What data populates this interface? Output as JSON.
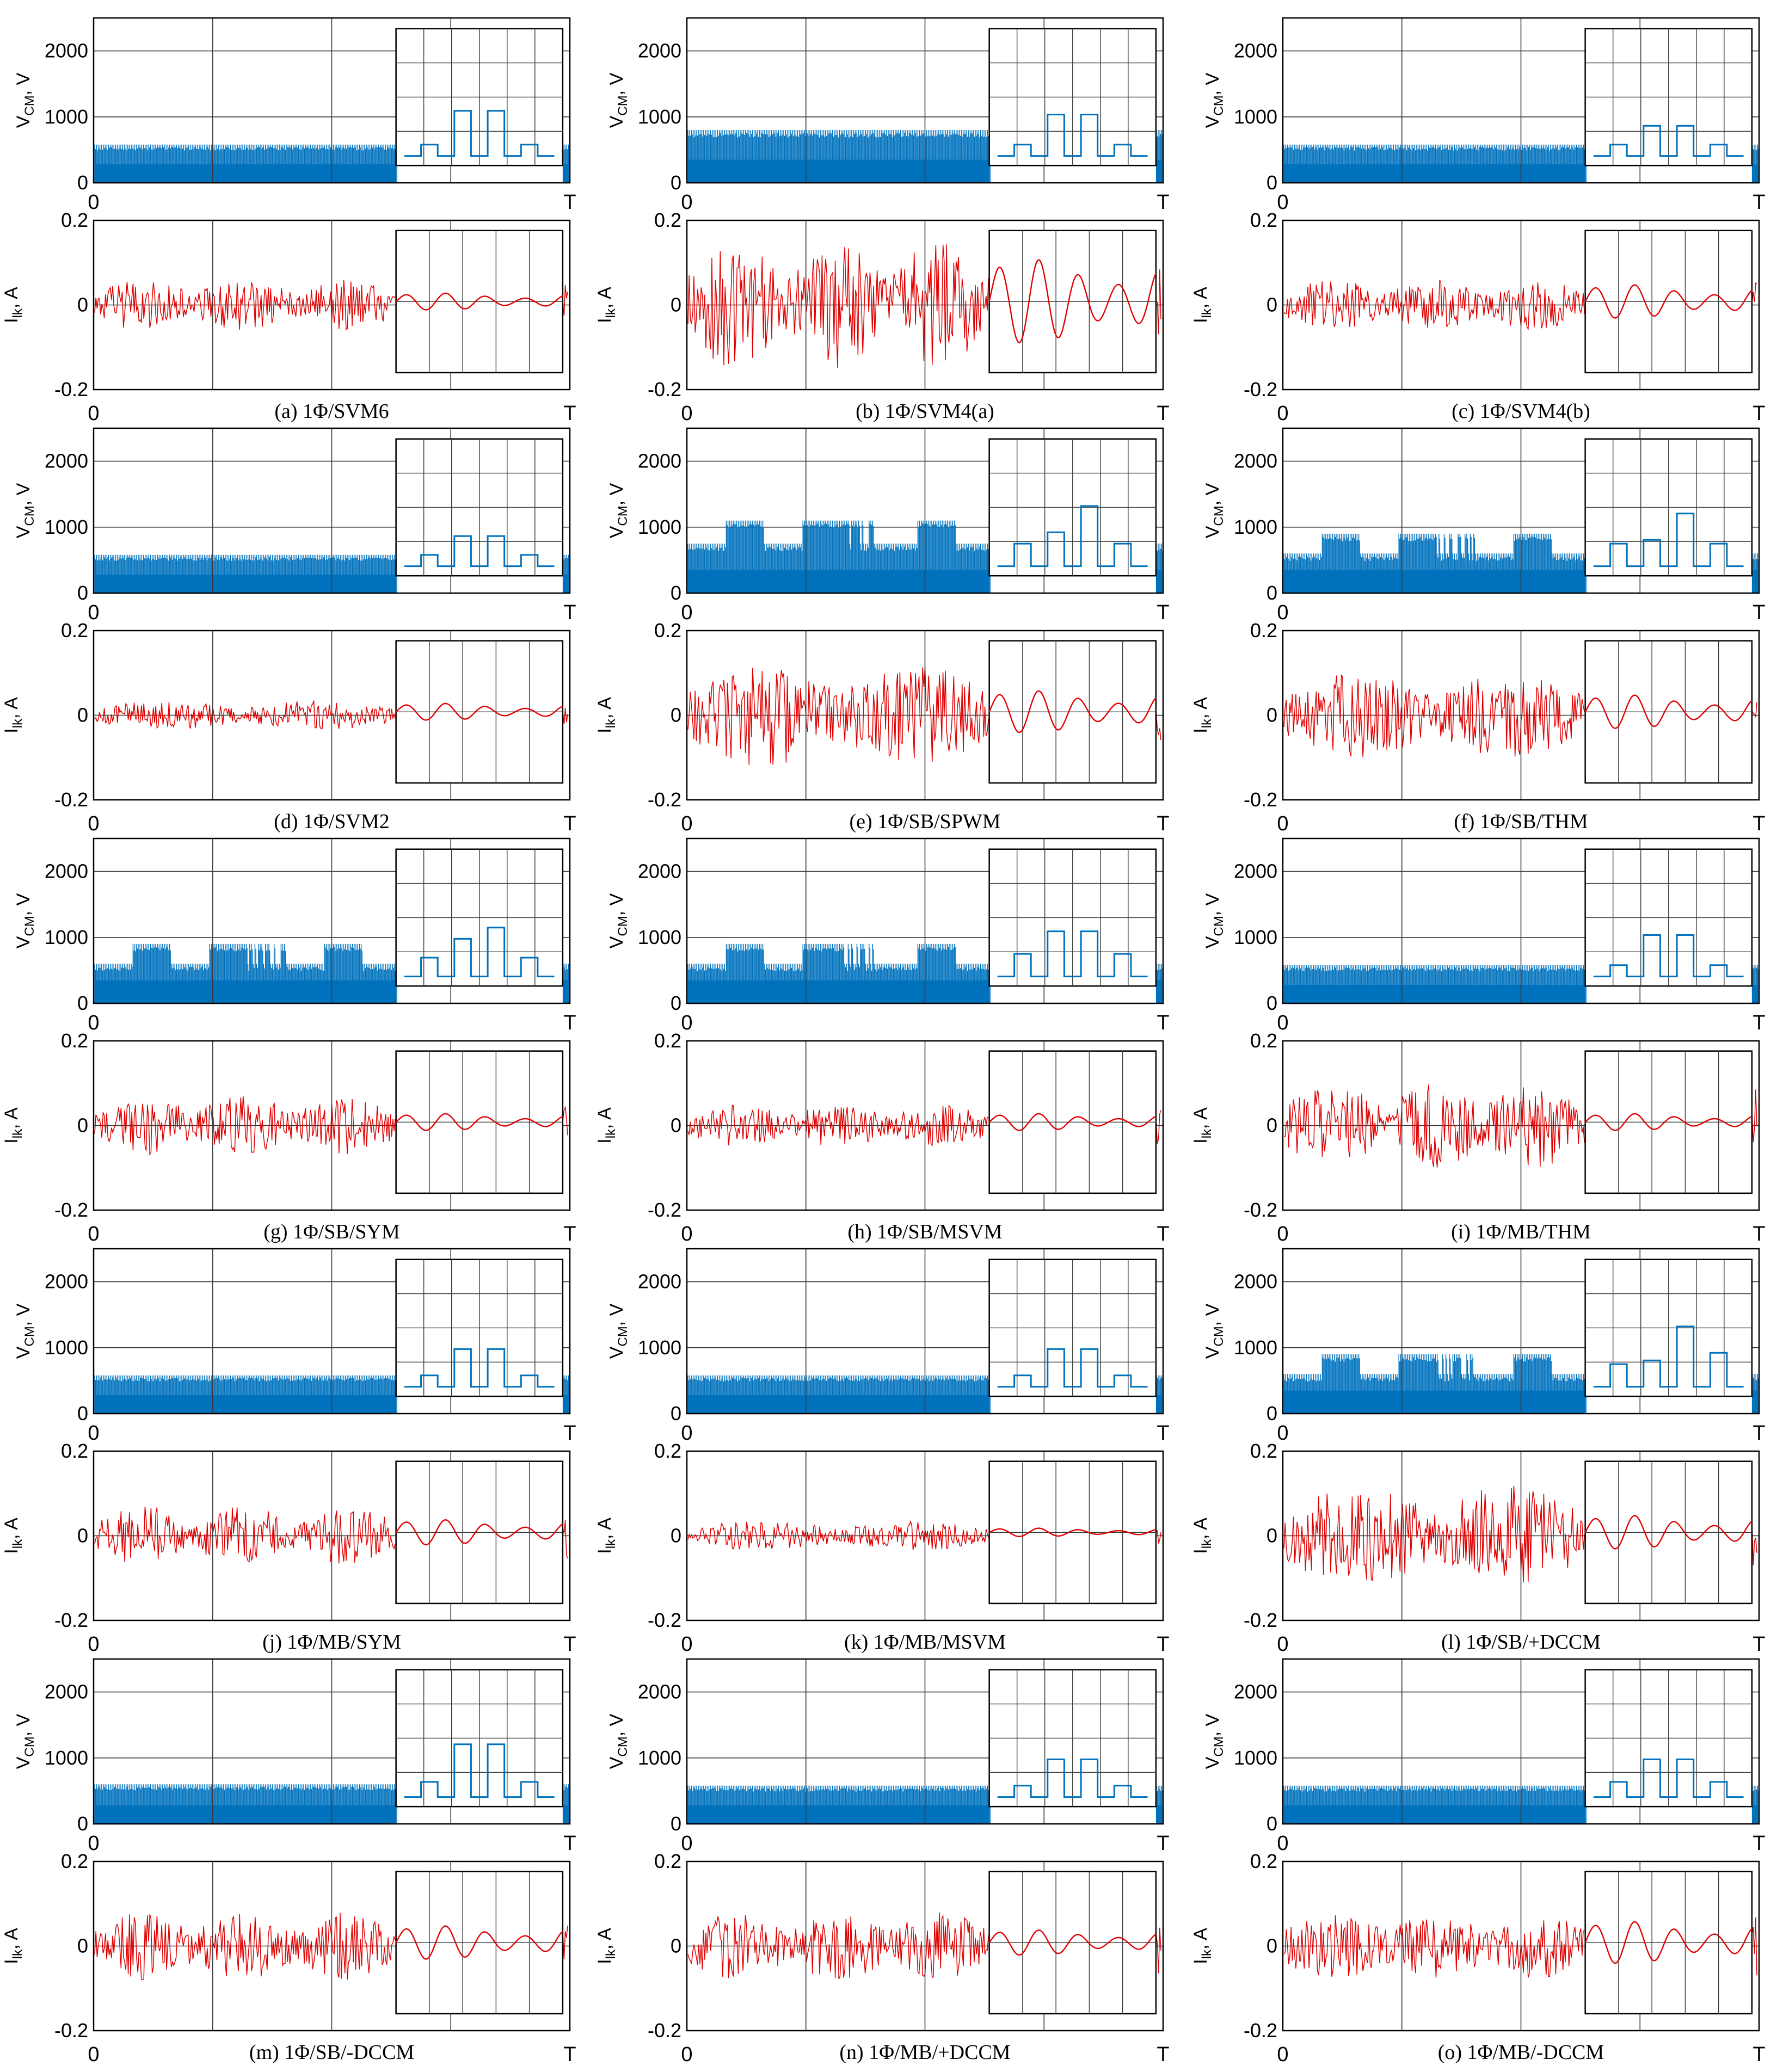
{
  "figure": {
    "vcm_ylabel": "VCM, V",
    "ilk_ylabel": "Ilk, A",
    "vcm_ticks": [
      "0",
      "1000",
      "2000"
    ],
    "ilk_ticks": [
      "-0.2",
      "0",
      "0.2"
    ],
    "x_start_label": "0",
    "x_end_label": "T",
    "colors": {
      "vcm": "#0072BD",
      "ilk": "#E00000",
      "axis": "#000000",
      "grid": "#3a3a3a"
    }
  },
  "chart_data": [
    {
      "id": "a",
      "caption": "(a) 1Φ/SVM6",
      "type": "line",
      "xlim": [
        "0",
        "T"
      ],
      "vcm": {
        "ylim": [
          0,
          2500
        ],
        "base": 200,
        "peaks": [
          580
        ],
        "inset_levels": [
          0,
          150,
          0,
          600,
          0,
          600,
          0,
          150,
          0
        ]
      },
      "ilk": {
        "ylim": [
          -0.2,
          0.2
        ],
        "amplitude": 0.06,
        "envelope_cycles": 3,
        "inset_amplitude": 0.02
      }
    },
    {
      "id": "b",
      "caption": "(b) 1Φ/SVM4(a)",
      "type": "line",
      "xlim": [
        "0",
        "T"
      ],
      "vcm": {
        "ylim": [
          0,
          2500
        ],
        "base": 250,
        "peaks": [
          800
        ],
        "inset_levels": [
          0,
          150,
          0,
          550,
          0,
          550,
          0,
          150,
          0
        ]
      },
      "ilk": {
        "ylim": [
          -0.2,
          0.2
        ],
        "amplitude": 0.15,
        "envelope_cycles": 3,
        "inset_amplitude": 0.1
      }
    },
    {
      "id": "c",
      "caption": "(c) 1Φ/SVM4(b)",
      "type": "line",
      "xlim": [
        "0",
        "T"
      ],
      "vcm": {
        "ylim": [
          0,
          2500
        ],
        "base": 200,
        "peaks": [
          580
        ],
        "inset_levels": [
          0,
          150,
          0,
          400,
          0,
          400,
          0,
          150,
          0
        ]
      },
      "ilk": {
        "ylim": [
          -0.2,
          0.2
        ],
        "amplitude": 0.06,
        "envelope_cycles": 3,
        "inset_amplitude": 0.04
      }
    },
    {
      "id": "d",
      "caption": "(d) 1Φ/SVM2",
      "type": "line",
      "xlim": [
        "0",
        "T"
      ],
      "vcm": {
        "ylim": [
          0,
          2500
        ],
        "base": 200,
        "peaks": [
          580
        ],
        "inset_levels": [
          0,
          150,
          0,
          400,
          0,
          400,
          0,
          150,
          0
        ]
      },
      "ilk": {
        "ylim": [
          -0.2,
          0.2
        ],
        "amplitude": 0.035,
        "envelope_cycles": 2,
        "inset_amplitude": 0.02
      }
    },
    {
      "id": "e",
      "caption": "(e) 1Φ/SB/SPWM",
      "type": "line",
      "xlim": [
        "0",
        "T"
      ],
      "vcm": {
        "ylim": [
          0,
          2500
        ],
        "base": 250,
        "peaks": [
          750,
          1100
        ],
        "inset_levels": [
          0,
          300,
          0,
          450,
          0,
          800,
          0,
          300,
          0
        ]
      },
      "ilk": {
        "ylim": [
          -0.2,
          0.2
        ],
        "amplitude": 0.12,
        "envelope_cycles": 2,
        "inset_amplitude": 0.05
      }
    },
    {
      "id": "f",
      "caption": "(f) 1Φ/SB/THM",
      "type": "line",
      "xlim": [
        "0",
        "T"
      ],
      "vcm": {
        "ylim": [
          0,
          2500
        ],
        "base": 250,
        "peaks": [
          600,
          900
        ],
        "inset_levels": [
          0,
          300,
          0,
          350,
          0,
          700,
          0,
          300,
          0
        ]
      },
      "ilk": {
        "ylim": [
          -0.2,
          0.2
        ],
        "amplitude": 0.1,
        "envelope_cycles": 2,
        "inset_amplitude": 0.04
      }
    },
    {
      "id": "g",
      "caption": "(g) 1Φ/SB/SYM",
      "type": "line",
      "xlim": [
        "0",
        "T"
      ],
      "vcm": {
        "ylim": [
          0,
          2500
        ],
        "base": 250,
        "peaks": [
          600,
          900
        ],
        "inset_levels": [
          0,
          250,
          0,
          500,
          0,
          650,
          0,
          250,
          0
        ]
      },
      "ilk": {
        "ylim": [
          -0.2,
          0.2
        ],
        "amplitude": 0.07,
        "envelope_cycles": 3,
        "inset_amplitude": 0.02
      }
    },
    {
      "id": "h",
      "caption": "(h) 1Φ/SB/MSVM",
      "type": "line",
      "xlim": [
        "0",
        "T"
      ],
      "vcm": {
        "ylim": [
          0,
          2500
        ],
        "base": 250,
        "peaks": [
          600,
          900
        ],
        "inset_levels": [
          0,
          300,
          0,
          600,
          0,
          600,
          0,
          300,
          0
        ]
      },
      "ilk": {
        "ylim": [
          -0.2,
          0.2
        ],
        "amplitude": 0.05,
        "envelope_cycles": 3,
        "inset_amplitude": 0.02
      }
    },
    {
      "id": "i",
      "caption": "(i) 1Φ/MB/THM",
      "type": "line",
      "xlim": [
        "0",
        "T"
      ],
      "vcm": {
        "ylim": [
          0,
          2500
        ],
        "base": 200,
        "peaks": [
          580
        ],
        "inset_levels": [
          0,
          150,
          0,
          550,
          0,
          550,
          0,
          150,
          0
        ]
      },
      "ilk": {
        "ylim": [
          -0.2,
          0.2
        ],
        "amplitude": 0.1,
        "envelope_cycles": 3,
        "inset_amplitude": 0.02
      }
    },
    {
      "id": "j",
      "caption": "(j) 1Φ/MB/SYM",
      "type": "line",
      "xlim": [
        "0",
        "T"
      ],
      "vcm": {
        "ylim": [
          0,
          2500
        ],
        "base": 200,
        "peaks": [
          580
        ],
        "inset_levels": [
          0,
          150,
          0,
          500,
          0,
          500,
          0,
          150,
          0
        ]
      },
      "ilk": {
        "ylim": [
          -0.2,
          0.2
        ],
        "amplitude": 0.07,
        "envelope_cycles": 3,
        "inset_amplitude": 0.03
      }
    },
    {
      "id": "k",
      "caption": "(k) 1Φ/MB/MSVM",
      "type": "line",
      "xlim": [
        "0",
        "T"
      ],
      "vcm": {
        "ylim": [
          0,
          2500
        ],
        "base": 200,
        "peaks": [
          580
        ],
        "inset_levels": [
          0,
          150,
          0,
          500,
          0,
          500,
          0,
          150,
          0
        ]
      },
      "ilk": {
        "ylim": [
          -0.2,
          0.2
        ],
        "amplitude": 0.035,
        "envelope_cycles": 2,
        "inset_amplitude": 0.01
      }
    },
    {
      "id": "l",
      "caption": "(l) 1Φ/SB/+DCCM",
      "type": "line",
      "xlim": [
        "0",
        "T"
      ],
      "vcm": {
        "ylim": [
          0,
          2500
        ],
        "base": 250,
        "peaks": [
          600,
          900
        ],
        "inset_levels": [
          0,
          300,
          0,
          350,
          0,
          800,
          0,
          450,
          0
        ]
      },
      "ilk": {
        "ylim": [
          -0.2,
          0.2
        ],
        "amplitude": 0.12,
        "envelope_cycles": 2,
        "inset_amplitude": 0.04
      }
    },
    {
      "id": "m",
      "caption": "(m) 1Φ/SB/-DCCM",
      "type": "line",
      "xlim": [
        "0",
        "T"
      ],
      "vcm": {
        "ylim": [
          0,
          2500
        ],
        "base": 200,
        "peaks": [
          600
        ],
        "inset_levels": [
          0,
          200,
          0,
          700,
          0,
          700,
          0,
          200,
          0
        ]
      },
      "ilk": {
        "ylim": [
          -0.2,
          0.2
        ],
        "amplitude": 0.08,
        "envelope_cycles": 3,
        "inset_amplitude": 0.04
      }
    },
    {
      "id": "n",
      "caption": "(n) 1Φ/MB/+DCCM",
      "type": "line",
      "xlim": [
        "0",
        "T"
      ],
      "vcm": {
        "ylim": [
          0,
          2500
        ],
        "base": 200,
        "peaks": [
          580
        ],
        "inset_levels": [
          0,
          150,
          0,
          500,
          0,
          500,
          0,
          150,
          0
        ]
      },
      "ilk": {
        "ylim": [
          -0.2,
          0.2
        ],
        "amplitude": 0.08,
        "envelope_cycles": 3,
        "inset_amplitude": 0.03
      }
    },
    {
      "id": "o",
      "caption": "(o) 1Φ/MB/-DCCM",
      "type": "line",
      "xlim": [
        "0",
        "T"
      ],
      "vcm": {
        "ylim": [
          0,
          2500
        ],
        "base": 200,
        "peaks": [
          580
        ],
        "inset_levels": [
          0,
          200,
          0,
          500,
          0,
          500,
          0,
          200,
          0
        ]
      },
      "ilk": {
        "ylim": [
          -0.2,
          0.2
        ],
        "amplitude": 0.08,
        "envelope_cycles": 3,
        "inset_amplitude": 0.05
      }
    }
  ]
}
